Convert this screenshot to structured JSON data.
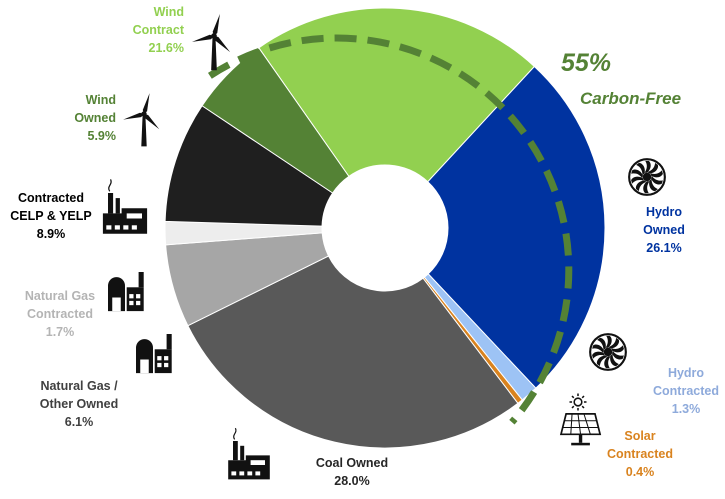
{
  "chart_data": {
    "type": "pie",
    "variant": "donut",
    "slices": [
      {
        "name": "Wind Contract",
        "value": 21.6,
        "value_label": "21.6%",
        "color": "#92d050",
        "text_color": "#92d050",
        "icon": "wind-turbine-icon"
      },
      {
        "name": "Hydro Owned",
        "value": 26.1,
        "value_label": "26.1%",
        "color": "#0033a0",
        "text_color": "#0033a0",
        "icon": "hydro-turbine-icon"
      },
      {
        "name": "Hydro Contracted",
        "value": 1.3,
        "value_label": "1.3%",
        "color": "#9dc3f5",
        "text_color": "#8eaadb",
        "icon": "hydro-turbine-icon"
      },
      {
        "name": "Solar Contracted",
        "value": 0.4,
        "value_label": "0.4%",
        "color": "#d9831f",
        "text_color": "#d9831f",
        "icon": "solar-panel-icon"
      },
      {
        "name": "Coal Owned",
        "value": 28.0,
        "value_label": "28.0%",
        "color": "#595959",
        "text_color": "#262626",
        "icon": "factory-icon"
      },
      {
        "name": "Natural Gas / Other Owned",
        "value": 6.1,
        "value_label": "6.1%",
        "color": "#a6a6a6",
        "text_color": "#404040",
        "icon": "gas-plant-icon"
      },
      {
        "name": "Natural Gas Contracted",
        "value": 1.7,
        "value_label": "1.7%",
        "color": "#ededed",
        "text_color": "#b4b4b4",
        "icon": "gas-plant-icon"
      },
      {
        "name": "Contracted CELP & YELP",
        "value": 8.9,
        "value_label": "8.9%",
        "color": "#1f1f1f",
        "text_color": "#000000",
        "icon": "factory-icon"
      },
      {
        "name": "Wind Owned",
        "value": 5.9,
        "value_label": "5.9%",
        "color": "#548235",
        "text_color": "#548235",
        "icon": "wind-turbine-icon"
      }
    ],
    "carbon_free": {
      "percent": "55%",
      "label": "Carbon-Free",
      "color": "#548235"
    }
  }
}
